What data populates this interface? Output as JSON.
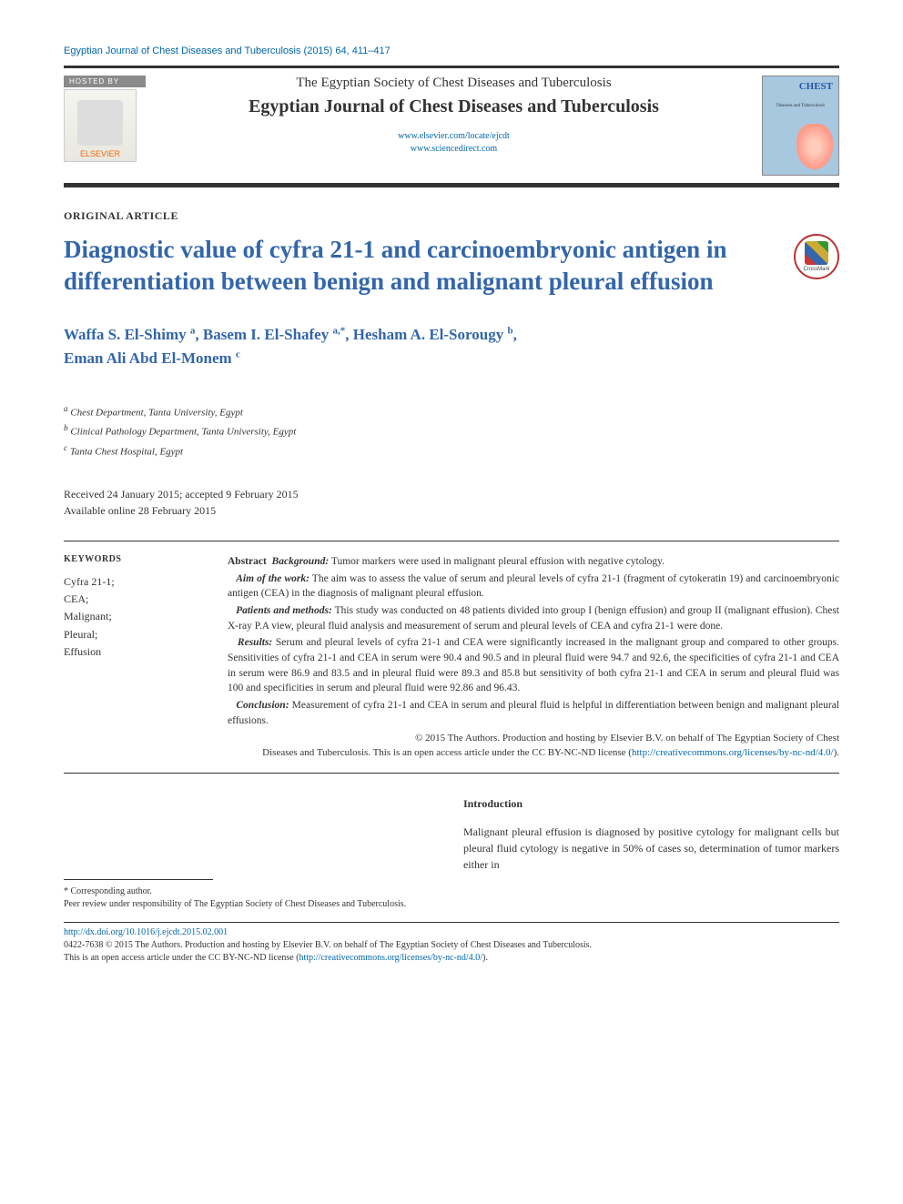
{
  "header": {
    "citation": "Egyptian Journal of Chest Diseases and Tuberculosis (2015) 64, 411–417",
    "hosted_by": "HOSTED BY",
    "publisher_logo_text": "ELSEVIER",
    "society": "The Egyptian Society of Chest Diseases and Tuberculosis",
    "journal": "Egyptian Journal of Chest Diseases and Tuberculosis",
    "link1": "www.elsevier.com/locate/ejcdt",
    "link2": "www.sciencedirect.com",
    "cover_title": "CHEST",
    "cover_sub": "Diseases and Tuberculosis"
  },
  "article": {
    "type": "ORIGINAL ARTICLE",
    "title": "Diagnostic value of cyfra 21-1 and carcinoembryonic antigen in differentiation between benign and malignant pleural effusion",
    "crossmark_label": "CrossMark"
  },
  "authors": {
    "a1_name": "Waffa S. El-Shimy ",
    "a1_sup": "a",
    "a2_name": "Basem I. El-Shafey ",
    "a2_sup": "a,*",
    "a3_name": "Hesham A. El-Sorougy ",
    "a3_sup": "b",
    "a4_name": "Eman Ali Abd El-Monem ",
    "a4_sup": "c"
  },
  "affiliations": {
    "a": "Chest Department, Tanta University, Egypt",
    "b": "Clinical Pathology Department, Tanta University, Egypt",
    "c": "Tanta Chest Hospital, Egypt"
  },
  "dates": {
    "received_accepted": "Received 24 January 2015; accepted 9 February 2015",
    "online": "Available online 28 February 2015"
  },
  "keywords": {
    "head": "KEYWORDS",
    "list": "Cyfra 21-1;\nCEA;\nMalignant;\nPleural;\nEffusion"
  },
  "abstract": {
    "label": "Abstract",
    "bg_head": "Background:",
    "bg_text": " Tumor markers were used in malignant pleural effusion with negative cytology.",
    "aim_head": "Aim of the work:",
    "aim_text": " The aim was to assess the value of serum and pleural levels of cyfra 21-1 (fragment of cytokeratin 19) and carcinoembryonic antigen (CEA) in the diagnosis of malignant pleural effusion.",
    "pm_head": "Patients and methods:",
    "pm_text": " This study was conducted on 48 patients divided into group I (benign effusion) and group II (malignant effusion). Chest X-ray P.A view, pleural fluid analysis and measurement of serum and pleural levels of CEA and cyfra 21-1 were done.",
    "res_head": "Results:",
    "res_text": " Serum and pleural levels of cyfra 21-1 and CEA were significantly increased in the malignant group and compared to other groups. Sensitivities of cyfra 21-1 and CEA in serum were 90.4 and 90.5 and in pleural fluid were 94.7 and 92.6, the specificities of cyfra 21-1 and CEA in serum were 86.9 and 83.5 and in pleural fluid were 89.3 and 85.8 but sensitivity of both cyfra 21-1 and CEA in serum and pleural fluid was 100 and specificities in serum and pleural fluid were 92.86 and 96.43.",
    "con_head": "Conclusion:",
    "con_text": " Measurement of cyfra 21-1 and CEA in serum and pleural fluid is helpful in differentiation between benign and malignant pleural effusions.",
    "copyright1": "© 2015 The Authors. Production and hosting by Elsevier B.V. on behalf of The Egyptian Society of Chest",
    "copyright2": "Diseases and Tuberculosis.  This is an open access article under the CC BY-NC-ND license (",
    "cc_link": "http://creativecommons.org/licenses/by-nc-nd/4.0/",
    "copyright3": ")."
  },
  "intro": {
    "head": "Introduction",
    "body": "Malignant pleural effusion is diagnosed by positive cytology for malignant cells but pleural fluid cytology is negative in 50% of cases so, determination of tumor markers either in"
  },
  "footnote": {
    "corresponding": "* Corresponding author.",
    "peer": "Peer review under responsibility of The Egyptian Society of Chest Diseases and Tuberculosis."
  },
  "footer": {
    "doi": "http://dx.doi.org/10.1016/j.ejcdt.2015.02.001",
    "issn_line": "0422-7638 © 2015 The Authors. Production and hosting by Elsevier B.V. on behalf of The Egyptian Society of Chest Diseases and Tuberculosis.",
    "cc_line": "This is an open access article under the CC BY-NC-ND license (",
    "cc_link": "http://creativecommons.org/licenses/by-nc-nd/4.0/",
    "cc_close": ")."
  },
  "colors": {
    "title_blue": "#3366aa",
    "link_blue": "#0066aa",
    "rule_dark": "#333333"
  }
}
